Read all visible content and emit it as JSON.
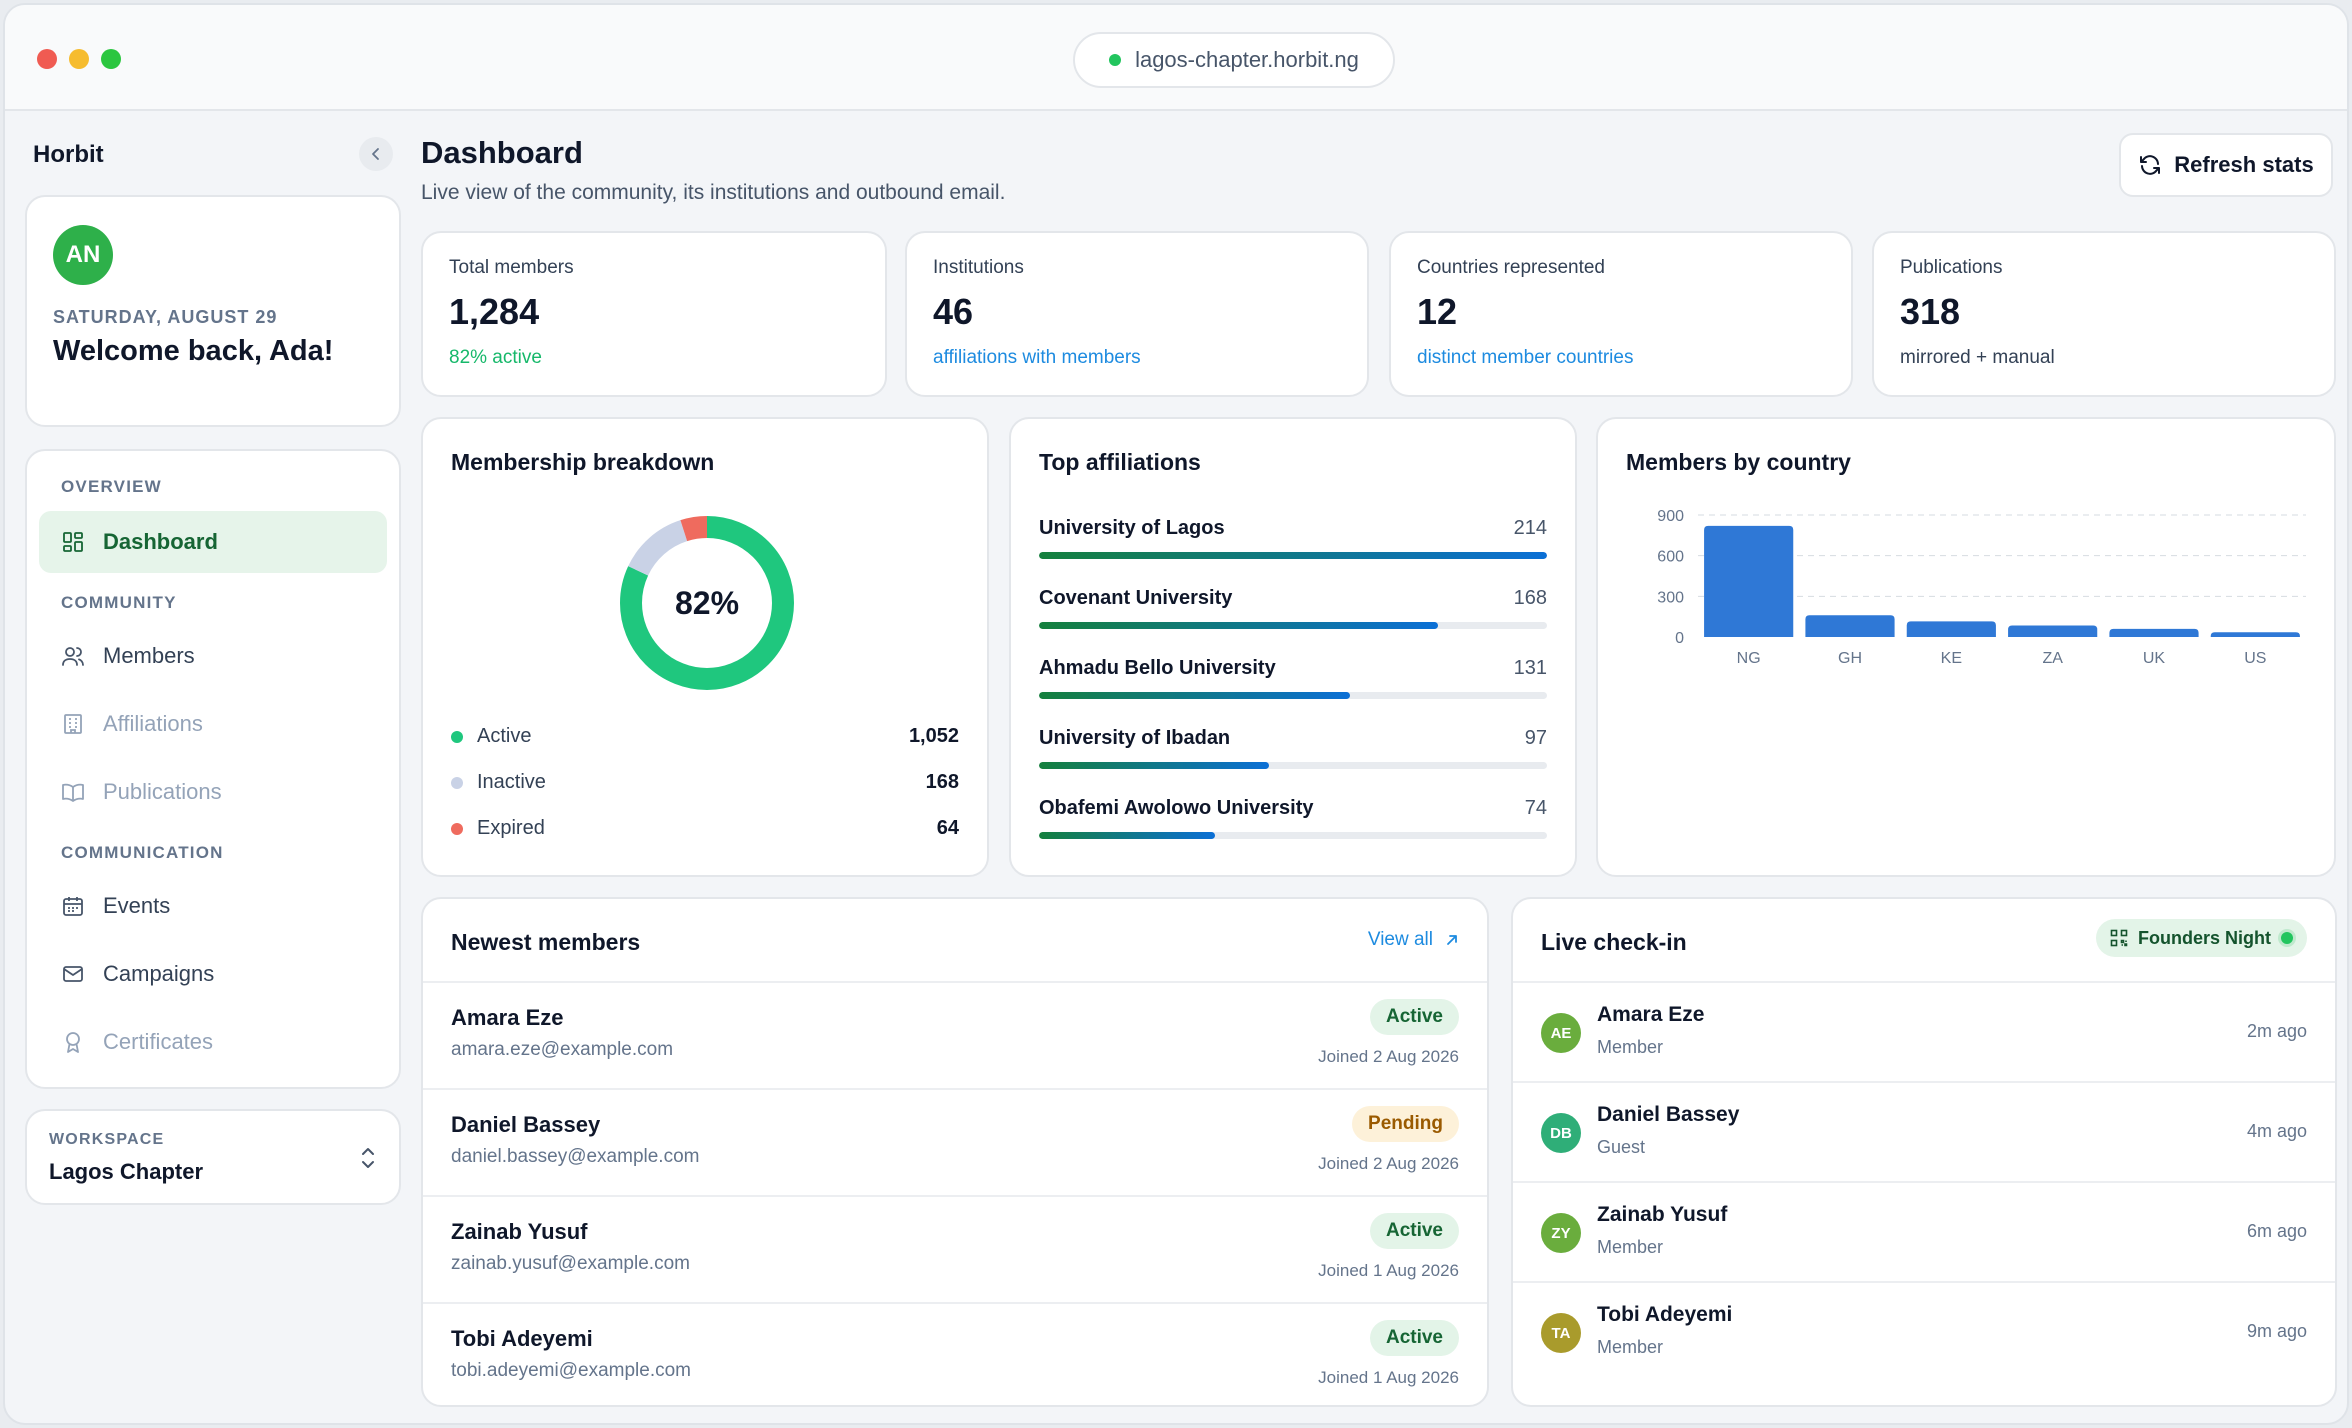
{
  "browser": {
    "url": "lagos-chapter.horbit.ng"
  },
  "sidebar": {
    "brand": "Horbit",
    "welcome": {
      "initials": "AN",
      "date": "SATURDAY, AUGUST 29",
      "greeting": "Welcome back, Ada!"
    },
    "sections": {
      "overview": "OVERVIEW",
      "community": "COMMUNITY",
      "communication": "COMMUNICATION"
    },
    "items": {
      "dashboard": "Dashboard",
      "members": "Members",
      "affiliations": "Affiliations",
      "publications": "Publications",
      "events": "Events",
      "campaigns": "Campaigns",
      "certificates": "Certificates"
    },
    "workspace": {
      "label": "WORKSPACE",
      "name": "Lagos Chapter"
    }
  },
  "header": {
    "title": "Dashboard",
    "subtitle": "Live view of the community, its institutions and outbound email.",
    "refresh_label": "Refresh stats"
  },
  "stats": [
    {
      "label": "Total members",
      "value": "1,284",
      "note": "82% active",
      "note_color": "#16b86a"
    },
    {
      "label": "Institutions",
      "value": "46",
      "note": "affiliations with members",
      "note_color": "#1d8be0"
    },
    {
      "label": "Countries represented",
      "value": "12",
      "note": "distinct member countries",
      "note_color": "#1d8be0"
    },
    {
      "label": "Publications",
      "value": "318",
      "note": "mirrored + manual",
      "note_color": "#334155"
    }
  ],
  "membership": {
    "title": "Membership breakdown",
    "center_label": "82%",
    "legend": [
      {
        "label": "Active",
        "value": "1,052",
        "color": "#1fc77e"
      },
      {
        "label": "Inactive",
        "value": "168",
        "color": "#c9d2e6"
      },
      {
        "label": "Expired",
        "value": "64",
        "color": "#ef6b5e"
      }
    ]
  },
  "affiliations": {
    "title": "Top affiliations",
    "items": [
      {
        "name": "University of Lagos",
        "value": "214",
        "fraction": 1.0
      },
      {
        "name": "Covenant University",
        "value": "168",
        "fraction": 0.785
      },
      {
        "name": "Ahmadu Bello University",
        "value": "131",
        "fraction": 0.612
      },
      {
        "name": "University of Ibadan",
        "value": "97",
        "fraction": 0.453
      },
      {
        "name": "Obafemi Awolowo University",
        "value": "74",
        "fraction": 0.346
      }
    ]
  },
  "chart_data": {
    "type": "bar",
    "title": "Members by country",
    "categories": [
      "NG",
      "GH",
      "KE",
      "ZA",
      "UK",
      "US"
    ],
    "values": [
      820,
      160,
      115,
      85,
      60,
      35
    ],
    "yticks": [
      "0",
      "300",
      "600",
      "900"
    ],
    "ylim": [
      0,
      900
    ],
    "grid": true,
    "bar_color": "#2f78d6"
  },
  "newest_members": {
    "title": "Newest members",
    "view_all": "View all",
    "rows": [
      {
        "name": "Amara Eze",
        "email": "amara.eze@example.com",
        "status": "Active",
        "joined": "Joined 2 Aug 2026"
      },
      {
        "name": "Daniel Bassey",
        "email": "daniel.bassey@example.com",
        "status": "Pending",
        "joined": "Joined 2 Aug 2026"
      },
      {
        "name": "Zainab Yusuf",
        "email": "zainab.yusuf@example.com",
        "status": "Active",
        "joined": "Joined 1 Aug 2026"
      },
      {
        "name": "Tobi Adeyemi",
        "email": "tobi.adeyemi@example.com",
        "status": "Active",
        "joined": "Joined 1 Aug 2026"
      }
    ]
  },
  "checkin": {
    "title": "Live check-in",
    "event": "Founders Night",
    "rows": [
      {
        "initials": "AE",
        "name": "Amara Eze",
        "role": "Member",
        "time": "2m ago",
        "color": "#6aad3d"
      },
      {
        "initials": "DB",
        "name": "Daniel Bassey",
        "role": "Guest",
        "time": "4m ago",
        "color": "#2fae78"
      },
      {
        "initials": "ZY",
        "name": "Zainab Yusuf",
        "role": "Member",
        "time": "6m ago",
        "color": "#6aad3d"
      },
      {
        "initials": "TA",
        "name": "Tobi Adeyemi",
        "role": "Member",
        "time": "9m ago",
        "color": "#a99b2c"
      }
    ]
  }
}
